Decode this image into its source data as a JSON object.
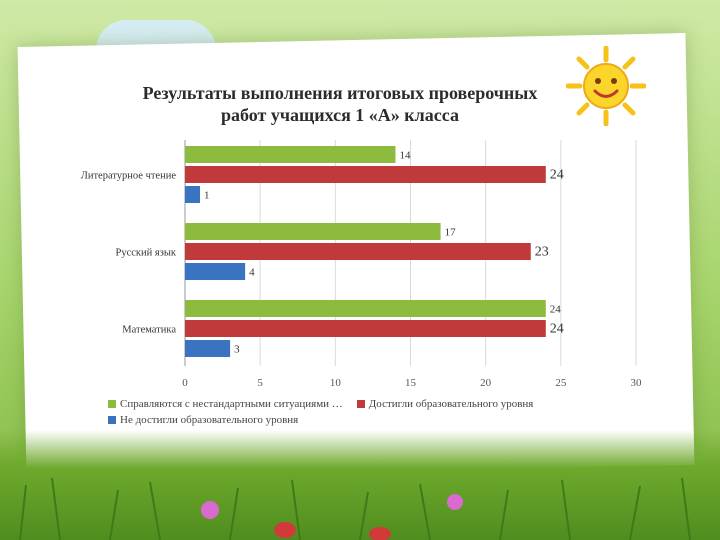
{
  "chart_data": {
    "type": "bar",
    "orientation": "horizontal",
    "title": "Результаты выполнения итоговых проверочных работ учащихся 1 «А» класса",
    "title_lines": [
      "Результаты выполнения итоговых проверочных",
      "работ учащихся 1 «А» класса"
    ],
    "categories": [
      "Литературное чтение",
      "Русский язык",
      "Математика"
    ],
    "series": [
      {
        "name": "Справляются с нестандартными ситуациями …",
        "values": [
          14,
          17,
          24
        ],
        "color": "#8dbb3e"
      },
      {
        "name": "Достигли образовательного уровня",
        "values": [
          24,
          23,
          24
        ],
        "color": "#c0393b"
      },
      {
        "name": "Не достигли образовательного уровня",
        "values": [
          1,
          4,
          3
        ],
        "color": "#3a74c1"
      }
    ],
    "xlim": [
      0,
      30
    ],
    "x_ticks": [
      "0",
      "5",
      "10",
      "15",
      "20",
      "25",
      "30"
    ],
    "grid": true,
    "legend_position": "bottom",
    "xlabel": "",
    "ylabel": ""
  }
}
